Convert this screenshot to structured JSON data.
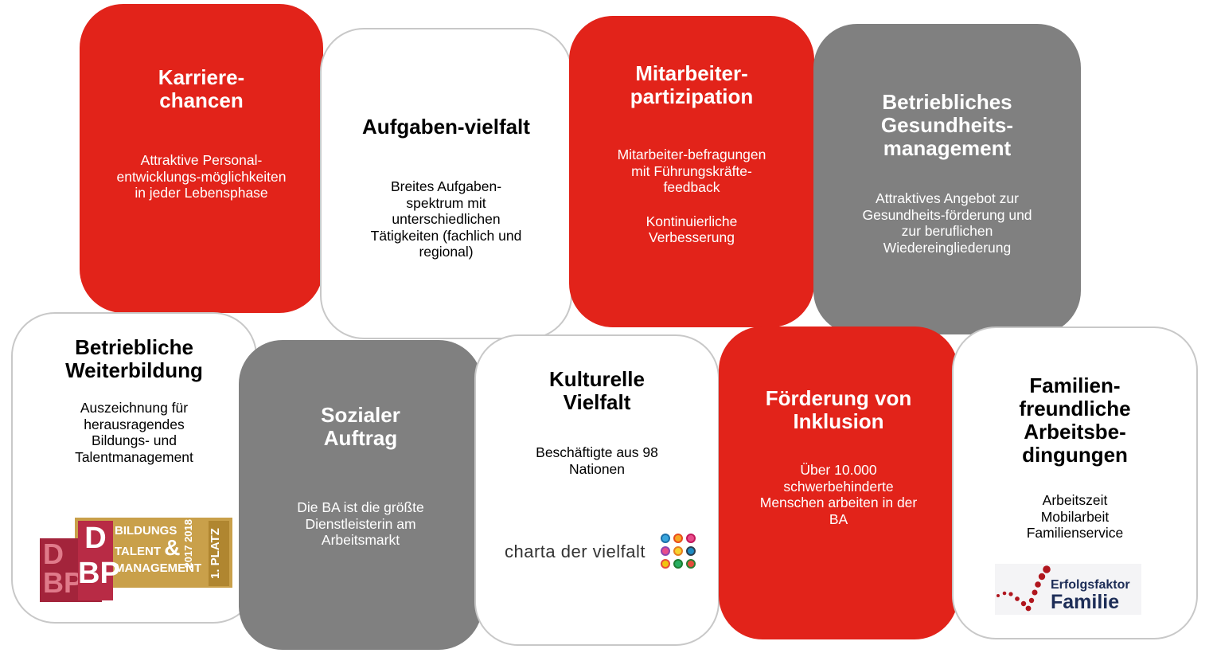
{
  "boxes": [
    {
      "title": "Karriere-\nchancen",
      "text": "Attraktive Personal-\nentwicklungs-möglichkeiten\nin jeder Lebensphase",
      "color": "#e2231a"
    },
    {
      "title": "Aufgaben-vielfalt",
      "text": "Breites Aufgaben-\nspektrum mit\nunterschiedlichen\nTätigkeiten    (fachlich und\nregional)",
      "color": "#ffffff"
    },
    {
      "title": "Mitarbeiter-\npartizipation",
      "text": "Mitarbeiter-befragungen\nmit Führungskräfte-\nfeedback",
      "text2": "Kontinuierliche\nVerbesserung",
      "color": "#e2231a"
    },
    {
      "title": "Betriebliches\nGesundheits-\nmanagement",
      "text": "Attraktives Angebot zur\nGesundheits-förderung und\nzur beruflichen\nWiedereingliederung",
      "color": "#808080"
    },
    {
      "title": "Betriebliche\nWeiterbildung",
      "text": "Auszeichnung für\nherausragendes\nBildungs- und\nTalentmanagement",
      "color": "#ffffff",
      "logo": {
        "text": [
          "BILDUNGS",
          "TALENT",
          "MANAGEMENT",
          "&",
          "2017",
          "2018",
          "1. PLATZ",
          "DBP"
        ]
      }
    },
    {
      "title": "Sozialer\nAuftrag",
      "text": "Die BA ist die größte\nDienstleisterin am\nArbeitsmarkt",
      "color": "#808080"
    },
    {
      "title": "Kulturelle\nVielfalt",
      "text": "Beschäftigte aus 98\nNationen",
      "color": "#ffffff",
      "logo": {
        "text": "charta der vielfalt"
      }
    },
    {
      "title": "Förderung von\nInklusion",
      "text": "Über 10.000\nschwerbehinderte\nMenschen arbeiten in der\nBA",
      "color": "#e2231a"
    },
    {
      "title": "Familien-\nfreundliche\nArbeitsbe-\ndingungen",
      "text": "Arbeitszeit\nMobilarbeit\nFamilienservice",
      "color": "#ffffff",
      "logo": {
        "line1": "Erfolgsfaktor",
        "line2": "Familie"
      }
    }
  ]
}
